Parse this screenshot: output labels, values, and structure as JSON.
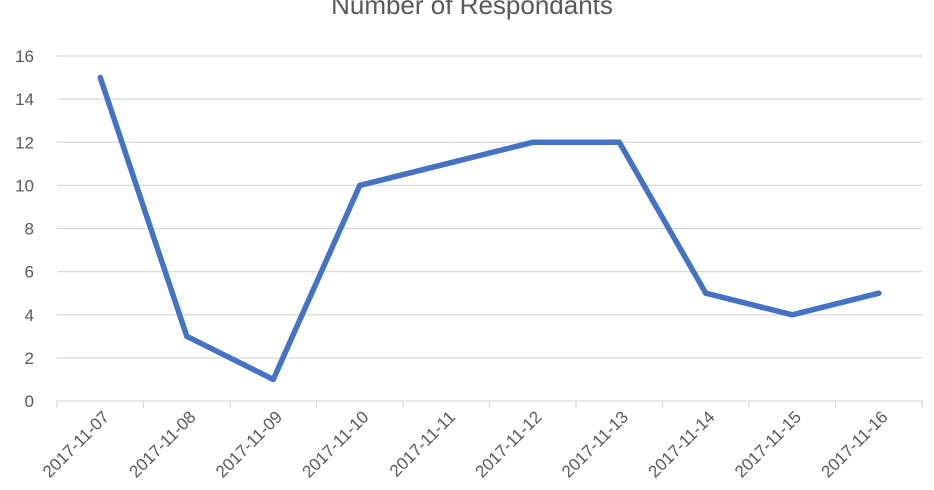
{
  "chart_data": {
    "type": "line",
    "title": "Number of Respondants",
    "categories": [
      "2017-11-07",
      "2017-11-08",
      "2017-11-09",
      "2017-11-10",
      "2017-11-11",
      "2017-11-12",
      "2017-11-13",
      "2017-11-14",
      "2017-11-15",
      "2017-11-16"
    ],
    "series": [
      {
        "values": [
          15,
          3,
          1,
          10,
          11,
          12,
          12,
          5,
          4,
          5
        ],
        "color": "#4472C4"
      }
    ],
    "ylim": [
      0,
      16
    ],
    "yticks": [
      0,
      2,
      4,
      6,
      8,
      10,
      12,
      14,
      16
    ],
    "grid": true,
    "legend": "none",
    "colors": {
      "grid": "#D9D9D9",
      "text": "#595959"
    }
  }
}
